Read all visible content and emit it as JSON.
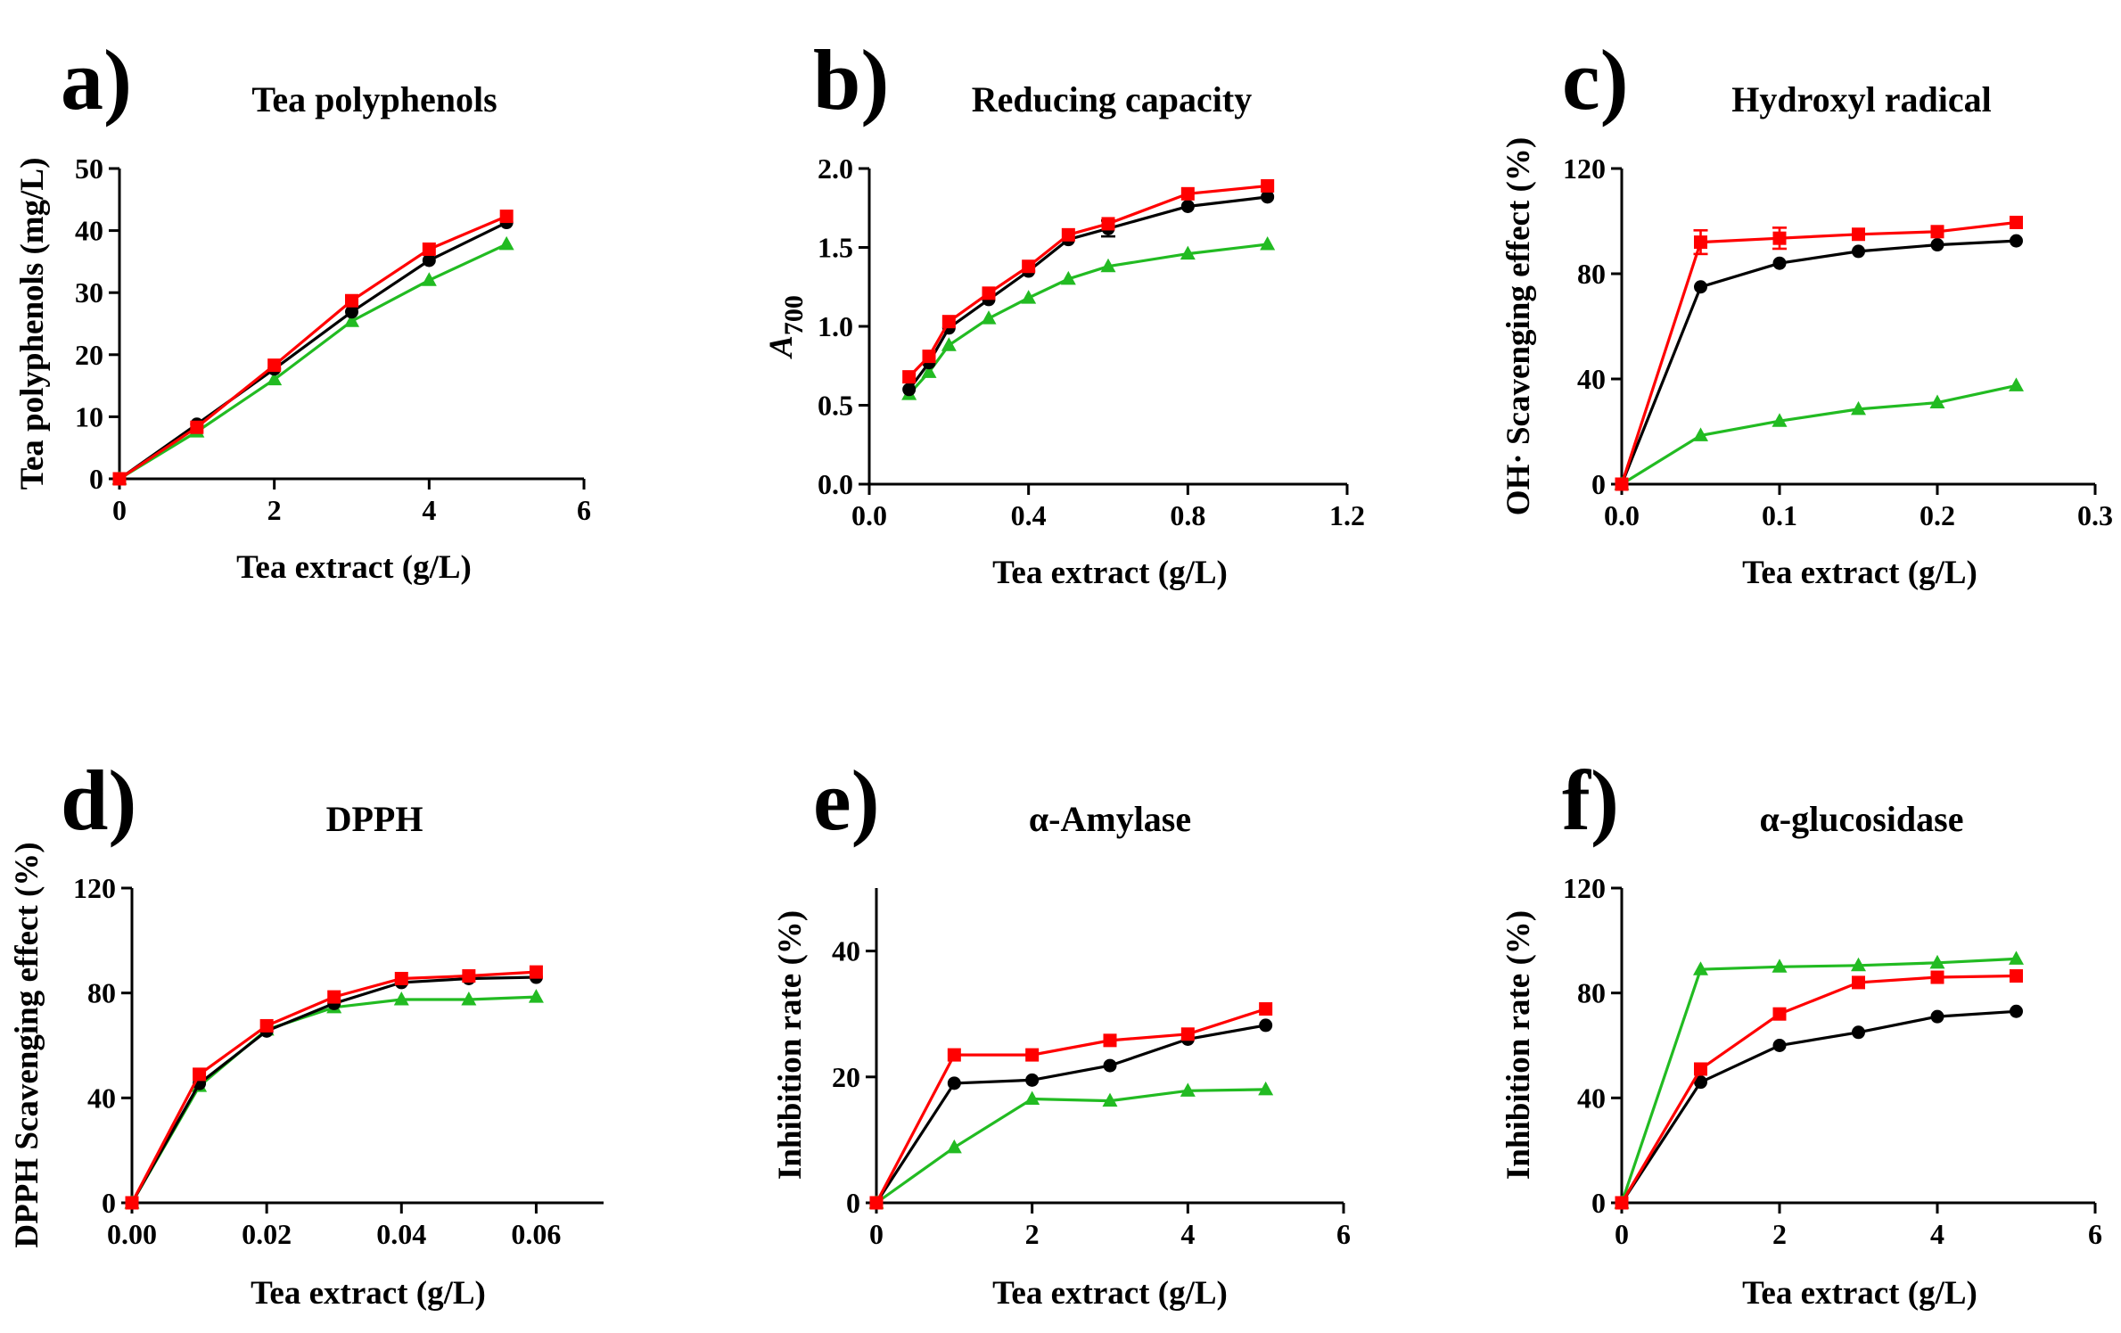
{
  "colors": {
    "red": "#ff0000",
    "black": "#000000",
    "green": "#22bb22"
  },
  "chart_data": [
    {
      "id": "a",
      "type": "line",
      "panel_letter": "a)",
      "title": "Tea polyphenols",
      "xlabel": "Tea extract (g/L)",
      "ylabel": "Tea polyphenols (mg/L)",
      "xlim": [
        0,
        6
      ],
      "ylim": [
        0,
        50
      ],
      "xticks": [
        0,
        2,
        4,
        6
      ],
      "xtick_labels": [
        "0",
        "2",
        "4",
        "6"
      ],
      "yticks": [
        0,
        10,
        20,
        30,
        40,
        50
      ],
      "ytick_labels": [
        "0",
        "10",
        "20",
        "30",
        "40",
        "50"
      ],
      "series": [
        {
          "name": "red",
          "color": "red",
          "marker": "square",
          "x": [
            0,
            1,
            2,
            3,
            4,
            5
          ],
          "y": [
            0,
            8.3,
            18.3,
            28.7,
            37.0,
            42.3
          ]
        },
        {
          "name": "black",
          "color": "black",
          "marker": "circle",
          "x": [
            0,
            1,
            2,
            3,
            4,
            5
          ],
          "y": [
            0,
            8.8,
            17.7,
            26.9,
            35.2,
            41.3
          ]
        },
        {
          "name": "green",
          "color": "green",
          "marker": "triangle",
          "x": [
            0,
            1,
            2,
            3,
            4,
            5
          ],
          "y": [
            0,
            7.6,
            16.0,
            25.4,
            32.0,
            37.8
          ]
        }
      ]
    },
    {
      "id": "b",
      "type": "line",
      "panel_letter": "b)",
      "title": "Reducing capacity",
      "xlabel": "Tea extract (g/L)",
      "ylabel": "A",
      "ylabel_sub": "700",
      "xlim": [
        0,
        1.2
      ],
      "ylim": [
        0,
        2.0
      ],
      "xticks": [
        0,
        0.4,
        0.8,
        1.2
      ],
      "xtick_labels": [
        "0.0",
        "0.4",
        "0.8",
        "1.2"
      ],
      "yticks": [
        0,
        0.5,
        1.0,
        1.5,
        2.0
      ],
      "ytick_labels": [
        "0.0",
        "0.5",
        "1.0",
        "1.5",
        "2.0"
      ],
      "series": [
        {
          "name": "red",
          "color": "red",
          "marker": "square",
          "x": [
            0.1,
            0.15,
            0.2,
            0.3,
            0.4,
            0.5,
            0.6,
            0.8,
            1.0
          ],
          "y": [
            0.68,
            0.81,
            1.03,
            1.21,
            1.38,
            1.58,
            1.65,
            1.84,
            1.89
          ]
        },
        {
          "name": "black",
          "color": "black",
          "marker": "circle",
          "x": [
            0.1,
            0.15,
            0.2,
            0.3,
            0.4,
            0.5,
            0.6,
            0.8,
            1.0
          ],
          "y": [
            0.6,
            0.77,
            0.99,
            1.17,
            1.35,
            1.55,
            1.62,
            1.76,
            1.82
          ],
          "err": [
            0,
            0,
            0,
            0,
            0,
            0,
            0.05,
            0,
            0
          ]
        },
        {
          "name": "green",
          "color": "green",
          "marker": "triangle",
          "x": [
            0.1,
            0.15,
            0.2,
            0.3,
            0.4,
            0.5,
            0.6,
            0.8,
            1.0
          ],
          "y": [
            0.57,
            0.71,
            0.88,
            1.05,
            1.18,
            1.3,
            1.38,
            1.46,
            1.52
          ]
        }
      ]
    },
    {
      "id": "c",
      "type": "line",
      "panel_letter": "c)",
      "title": "Hydroxyl radical",
      "xlabel": "Tea extract (g/L)",
      "ylabel": "OH· Scavenging effect (%)",
      "xlim": [
        0,
        0.3
      ],
      "ylim": [
        0,
        120
      ],
      "xticks": [
        0,
        0.1,
        0.2,
        0.3
      ],
      "xtick_labels": [
        "0.0",
        "0.1",
        "0.2",
        "0.3"
      ],
      "yticks": [
        0,
        40,
        80,
        120
      ],
      "ytick_labels": [
        "0",
        "40",
        "80",
        "120"
      ],
      "series": [
        {
          "name": "red",
          "color": "red",
          "marker": "square",
          "x": [
            0,
            0.05,
            0.1,
            0.15,
            0.2,
            0.25
          ],
          "y": [
            0,
            92.0,
            93.5,
            95.0,
            96.0,
            99.5
          ],
          "err": [
            0,
            4.5,
            4.0,
            0,
            0,
            0
          ]
        },
        {
          "name": "black",
          "color": "black",
          "marker": "circle",
          "x": [
            0,
            0.05,
            0.1,
            0.15,
            0.2,
            0.25
          ],
          "y": [
            0,
            75.0,
            84.0,
            88.5,
            91.0,
            92.5
          ]
        },
        {
          "name": "green",
          "color": "green",
          "marker": "triangle",
          "x": [
            0,
            0.05,
            0.1,
            0.15,
            0.2,
            0.25
          ],
          "y": [
            0,
            18.5,
            24.0,
            28.5,
            31.0,
            37.5
          ]
        }
      ]
    },
    {
      "id": "d",
      "type": "line",
      "panel_letter": "d)",
      "title": "DPPH",
      "xlabel": "Tea extract (g/L)",
      "ylabel": "DPPH Scavenging effect (%)",
      "xlim": [
        0,
        0.07
      ],
      "ylim": [
        0,
        120
      ],
      "xticks": [
        0,
        0.02,
        0.04,
        0.06
      ],
      "xtick_labels": [
        "0.00",
        "0.02",
        "0.04",
        "0.06"
      ],
      "yticks": [
        0,
        40,
        80,
        120
      ],
      "ytick_labels": [
        "0",
        "40",
        "80",
        "120"
      ],
      "series": [
        {
          "name": "red",
          "color": "red",
          "marker": "square",
          "x": [
            0,
            0.01,
            0.02,
            0.03,
            0.04,
            0.05,
            0.06
          ],
          "y": [
            0,
            49.0,
            67.5,
            78.5,
            85.5,
            86.5,
            88.0
          ]
        },
        {
          "name": "black",
          "color": "black",
          "marker": "circle",
          "x": [
            0,
            0.01,
            0.02,
            0.03,
            0.04,
            0.05,
            0.06
          ],
          "y": [
            0,
            45.5,
            65.5,
            76.0,
            84.0,
            85.5,
            86.0
          ]
        },
        {
          "name": "green",
          "color": "green",
          "marker": "triangle",
          "x": [
            0,
            0.01,
            0.02,
            0.03,
            0.04,
            0.05,
            0.06
          ],
          "y": [
            0,
            44.5,
            66.0,
            74.5,
            77.5,
            77.5,
            78.5
          ]
        }
      ]
    },
    {
      "id": "e",
      "type": "line",
      "panel_letter": "e)",
      "title": "α-Amylase",
      "xlabel": "Tea extract (g/L)",
      "ylabel": "Inhibition rate (%)",
      "xlim": [
        0,
        6
      ],
      "ylim": [
        0,
        50
      ],
      "xticks": [
        0,
        2,
        4,
        6
      ],
      "xtick_labels": [
        "0",
        "2",
        "4",
        "6"
      ],
      "yticks": [
        0,
        20,
        40
      ],
      "ytick_labels": [
        "0",
        "20",
        "40"
      ],
      "series": [
        {
          "name": "red",
          "color": "red",
          "marker": "square",
          "x": [
            0,
            1,
            2,
            3,
            4,
            5
          ],
          "y": [
            0,
            23.5,
            23.5,
            25.8,
            26.8,
            30.8
          ]
        },
        {
          "name": "black",
          "color": "black",
          "marker": "circle",
          "x": [
            0,
            1,
            2,
            3,
            4,
            5
          ],
          "y": [
            0,
            19.0,
            19.5,
            21.8,
            26.0,
            28.2
          ]
        },
        {
          "name": "green",
          "color": "green",
          "marker": "triangle",
          "x": [
            0,
            1,
            2,
            3,
            4,
            5
          ],
          "y": [
            0,
            8.8,
            16.5,
            16.2,
            17.8,
            18.0
          ]
        }
      ]
    },
    {
      "id": "f",
      "type": "line",
      "panel_letter": "f)",
      "title": "α-glucosidase",
      "xlabel": "Tea extract (g/L)",
      "ylabel": "Inhibition rate (%)",
      "xlim": [
        0,
        6
      ],
      "ylim": [
        0,
        120
      ],
      "xticks": [
        0,
        2,
        4,
        6
      ],
      "xtick_labels": [
        "0",
        "2",
        "4",
        "6"
      ],
      "yticks": [
        0,
        40,
        80,
        120
      ],
      "ytick_labels": [
        "0",
        "40",
        "80",
        "120"
      ],
      "series": [
        {
          "name": "red",
          "color": "red",
          "marker": "square",
          "x": [
            0,
            1,
            2,
            3,
            4,
            5
          ],
          "y": [
            0,
            51.0,
            72.0,
            84.0,
            86.0,
            86.5
          ]
        },
        {
          "name": "black",
          "color": "black",
          "marker": "circle",
          "x": [
            0,
            1,
            2,
            3,
            4,
            5
          ],
          "y": [
            0,
            46.0,
            60.0,
            65.0,
            71.0,
            73.0
          ]
        },
        {
          "name": "green",
          "color": "green",
          "marker": "triangle",
          "x": [
            0,
            1,
            2,
            3,
            4,
            5
          ],
          "y": [
            0,
            89.0,
            90.0,
            90.5,
            91.5,
            93.0
          ]
        }
      ]
    }
  ]
}
